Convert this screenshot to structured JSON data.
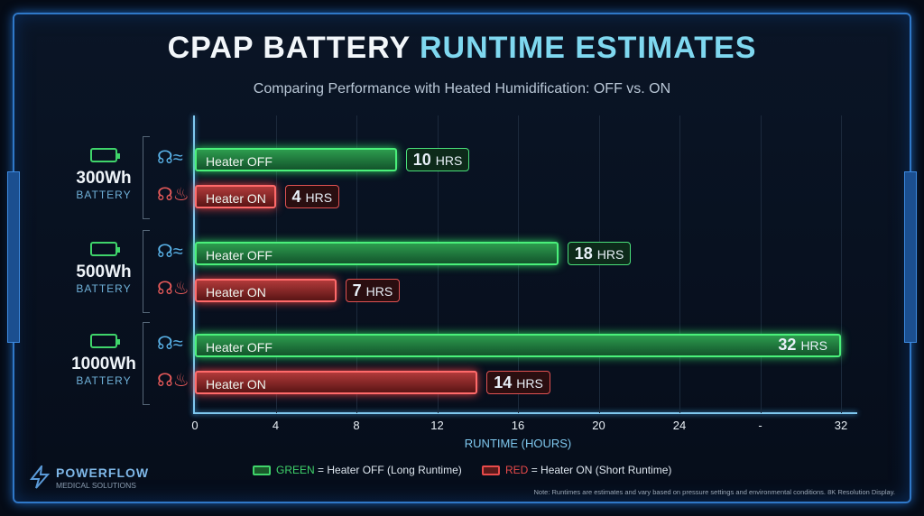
{
  "title_part1": "CPAP BATTERY",
  "title_part2": "RUNTIME ESTIMATES",
  "subtitle": "Comparing Performance with Heated Humidification: OFF vs. ON",
  "chart_data": {
    "type": "bar",
    "orientation": "horizontal",
    "title": "CPAP BATTERY RUNTIME ESTIMATES",
    "subtitle": "Comparing Performance with Heated Humidification: OFF vs. ON",
    "xlabel": "RUNTIME (HOURS)",
    "xlim": [
      0,
      32
    ],
    "xticks": [
      "0",
      "4",
      "8",
      "12",
      "16",
      "20",
      "24",
      "-",
      "32"
    ],
    "grid": true,
    "groups": [
      {
        "capacity": "300Wh",
        "sub": "BATTERY",
        "bars": [
          {
            "label": "Heater OFF",
            "value": 10,
            "value_label": "10",
            "unit": "HRS",
            "color": "green"
          },
          {
            "label": "Heater ON",
            "value": 4,
            "value_label": "4",
            "unit": "HRS",
            "color": "red"
          }
        ]
      },
      {
        "capacity": "500Wh",
        "sub": "BATTERY",
        "bars": [
          {
            "label": "Heater OFF",
            "value": 18,
            "value_label": "18",
            "unit": "HRS",
            "color": "green"
          },
          {
            "label": "Heater ON",
            "value": 7,
            "value_label": "7",
            "unit": "HRS",
            "color": "red"
          }
        ]
      },
      {
        "capacity": "1000Wh",
        "sub": "BATTERY",
        "bars": [
          {
            "label": "Heater OFF",
            "value": 32,
            "value_label": "32",
            "unit": "HRS",
            "color": "green"
          },
          {
            "label": "Heater ON",
            "value": 14,
            "value_label": "14",
            "unit": "HRS",
            "color": "red"
          }
        ]
      }
    ],
    "colors": {
      "green": "#3fd46a",
      "red": "#e84a4a",
      "accent": "#7fd8f0"
    }
  },
  "legend": {
    "green_key": "GREEN",
    "green_text": "= Heater OFF (Long Runtime)",
    "red_key": "RED",
    "red_text": "= Heater ON (Short Runtime)"
  },
  "logo": {
    "name": "POWERFLOW",
    "tagline": "MEDICAL SOLUTIONS"
  },
  "note": "Note: Runtimes are estimates and vary based on pressure settings and environmental conditions. 8K Resolution Display."
}
